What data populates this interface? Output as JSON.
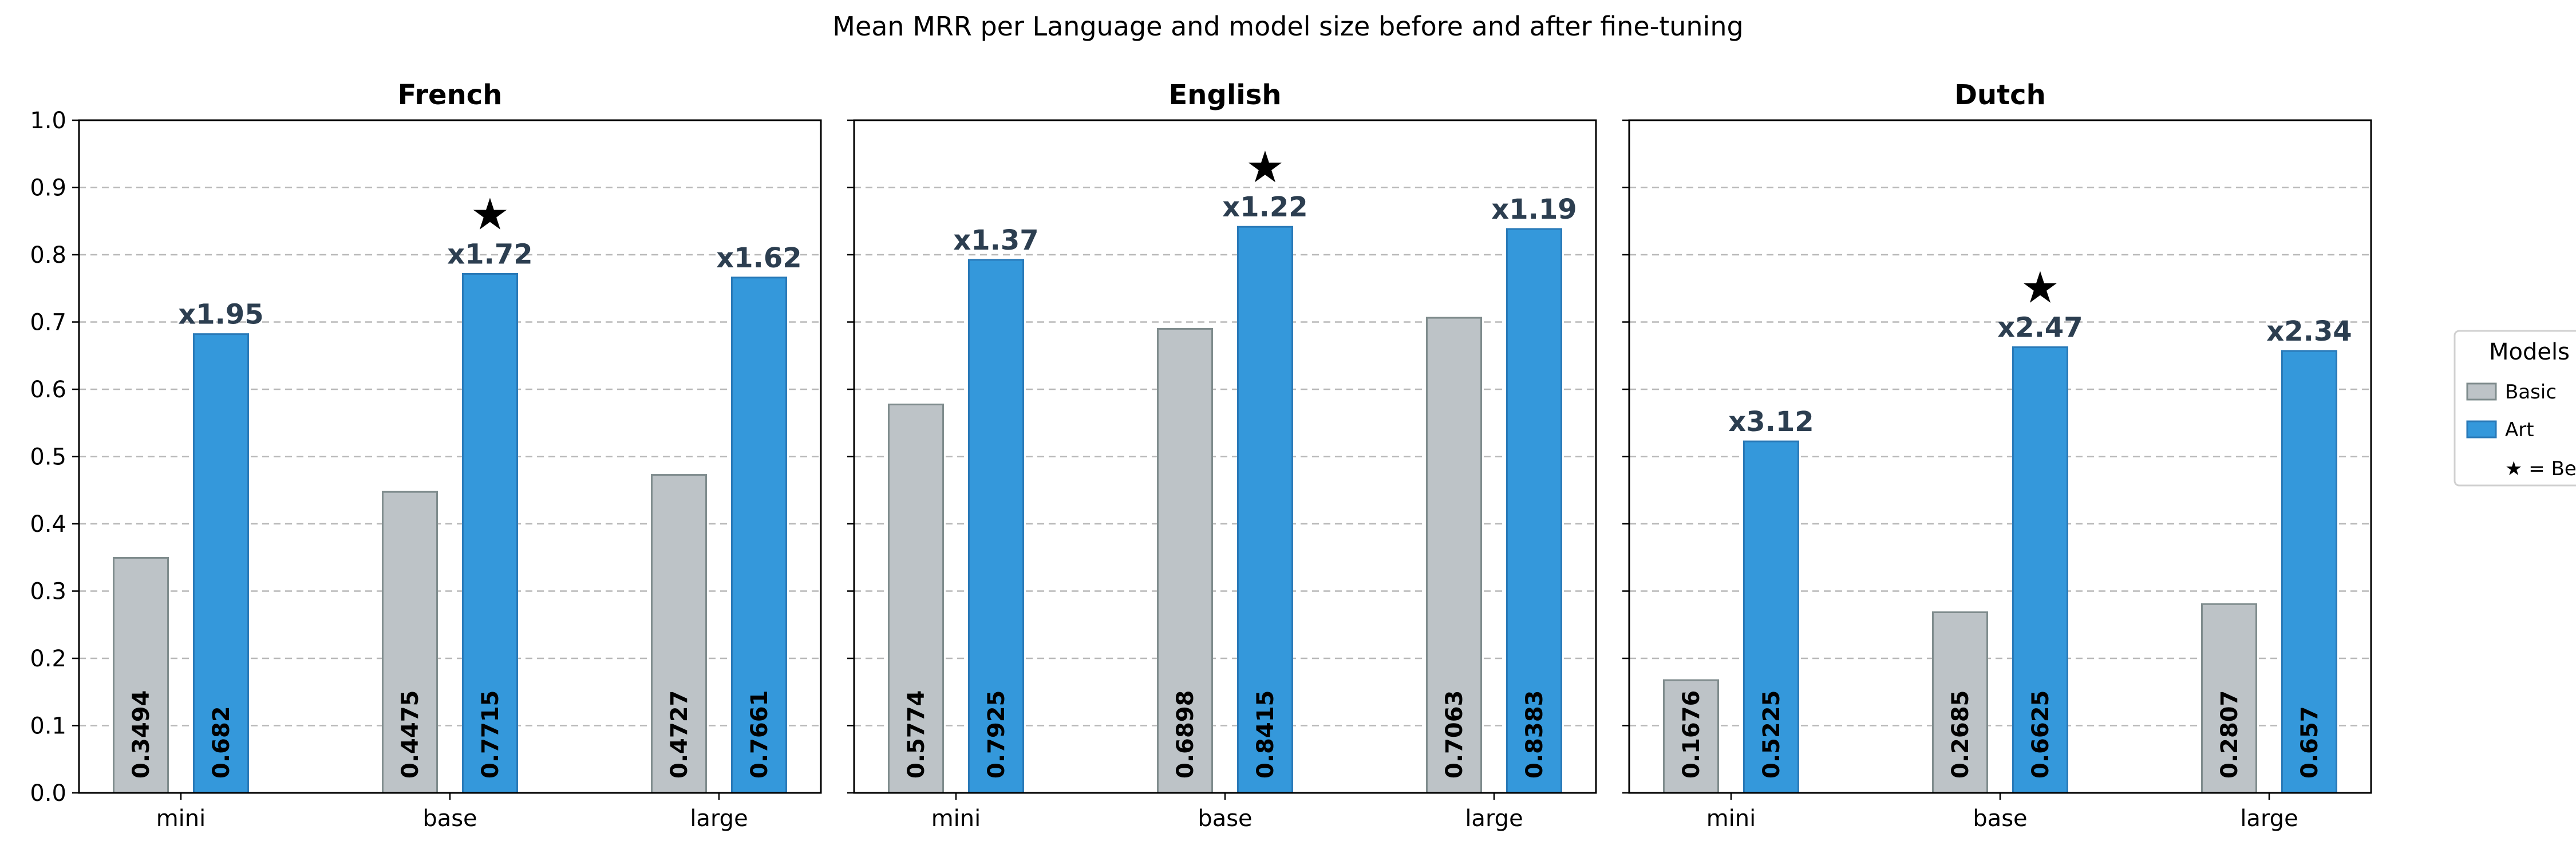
{
  "chart_data": {
    "type": "bar",
    "title": "Mean MRR per Language and model size before and after fine-tuning",
    "categories": [
      "mini",
      "base",
      "large"
    ],
    "ylim": [
      0,
      1.0
    ],
    "yticks": [
      "0.0",
      "0.1",
      "0.2",
      "0.3",
      "0.4",
      "0.5",
      "0.6",
      "0.7",
      "0.8",
      "0.9",
      "1.0"
    ],
    "grid": true,
    "legend_position": "right",
    "legend": {
      "title": "Models",
      "entries": [
        "Basic",
        "Art"
      ],
      "note": "★ = Best"
    },
    "colors": {
      "Basic": "#bdc3c7",
      "Art": "#3498db",
      "ratio_text": "#2c3e50"
    },
    "panels": [
      {
        "title": "French",
        "series": [
          {
            "name": "Basic",
            "values": [
              0.3494,
              0.4475,
              0.4727
            ],
            "labels": [
              "0.3494",
              "0.4475",
              "0.4727"
            ]
          },
          {
            "name": "Art",
            "values": [
              0.682,
              0.7715,
              0.7661
            ],
            "labels": [
              "0.682",
              "0.7715",
              "0.7661"
            ]
          }
        ],
        "ratios": [
          "x1.95",
          "x1.72",
          "x1.62"
        ],
        "best_index": 1
      },
      {
        "title": "English",
        "series": [
          {
            "name": "Basic",
            "values": [
              0.5774,
              0.6898,
              0.7063
            ],
            "labels": [
              "0.5774",
              "0.6898",
              "0.7063"
            ]
          },
          {
            "name": "Art",
            "values": [
              0.7925,
              0.8415,
              0.8383
            ],
            "labels": [
              "0.7925",
              "0.8415",
              "0.8383"
            ]
          }
        ],
        "ratios": [
          "x1.37",
          "x1.22",
          "x1.19"
        ],
        "best_index": 1
      },
      {
        "title": "Dutch",
        "series": [
          {
            "name": "Basic",
            "values": [
              0.1676,
              0.2685,
              0.2807
            ],
            "labels": [
              "0.1676",
              "0.2685",
              "0.2807"
            ]
          },
          {
            "name": "Art",
            "values": [
              0.5225,
              0.6625,
              0.657
            ],
            "labels": [
              "0.5225",
              "0.6625",
              "0.657"
            ]
          }
        ],
        "ratios": [
          "x3.12",
          "x2.47",
          "x2.34"
        ],
        "best_index": 1
      }
    ]
  }
}
